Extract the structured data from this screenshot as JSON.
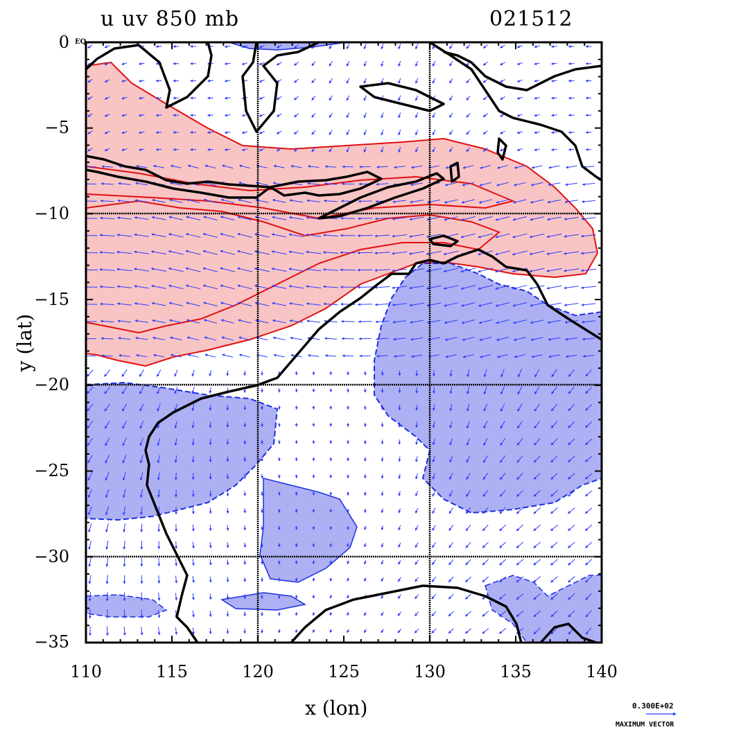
{
  "title": {
    "left": "u  uv  850  mb",
    "right": "021512"
  },
  "axes": {
    "xlabel": "x (lon)",
    "ylabel": "y (lat)",
    "xticks": [
      "110",
      "115",
      "120",
      "125",
      "130",
      "135",
      "140"
    ],
    "yticks": [
      "0",
      "−5",
      "−10",
      "−15",
      "−20",
      "−25",
      "−30",
      "−35"
    ],
    "y0_suffix": "EQ",
    "xrange": [
      110,
      140
    ],
    "yrange": [
      -35,
      0
    ],
    "grid_lines": {
      "lon": [
        120,
        130
      ],
      "lat": [
        -10,
        -20,
        -30
      ]
    }
  },
  "legend": {
    "max_vector_value": "0.300E+02",
    "max_vector_label": "MAXIMUM VECTOR"
  },
  "colors": {
    "positive_fill": "#f9c4c4",
    "positive_contour": "#e01010",
    "negative_fill": "#aeb0f4",
    "negative_contour": "#1a2ee0",
    "vectors": "#2a3cff",
    "coast": "#000000"
  },
  "map": {
    "variable": "u",
    "level": "850 mb",
    "vector_field": "uv"
  }
}
